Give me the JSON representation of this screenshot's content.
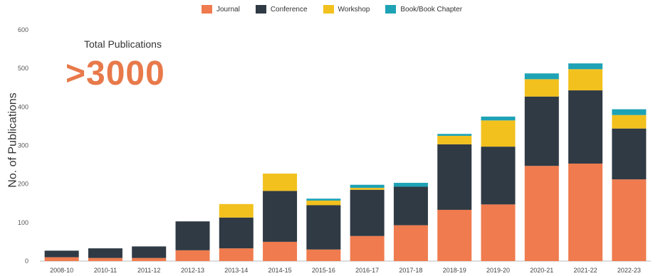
{
  "colors": {
    "journal": "#ef7b4e",
    "conference": "#2f3a44",
    "workshop": "#f2c11e",
    "book": "#1ea2b5"
  },
  "callout": {
    "label": "Total Publications",
    "value": ">3000"
  },
  "chart_data": {
    "type": "bar",
    "stacked": true,
    "categories": [
      "2008-10",
      "2010-11",
      "2011-12",
      "2012-13",
      "2013-14",
      "2014-15",
      "2015-16",
      "2016-17",
      "2017-18",
      "2018-19",
      "2019-20",
      "2020-21",
      "2021-22",
      "2022-23"
    ],
    "series": [
      {
        "name": "Journal",
        "values": [
          10,
          8,
          8,
          28,
          33,
          50,
          30,
          65,
          93,
          133,
          147,
          247,
          253,
          212
        ]
      },
      {
        "name": "Conference",
        "values": [
          17,
          25,
          30,
          75,
          80,
          132,
          115,
          120,
          100,
          170,
          150,
          180,
          190,
          132
        ]
      },
      {
        "name": "Workshop",
        "values": [
          0,
          0,
          0,
          0,
          35,
          45,
          12,
          5,
          0,
          22,
          68,
          45,
          55,
          35
        ]
      },
      {
        "name": "Book/Book Chapter",
        "values": [
          0,
          0,
          0,
          0,
          0,
          0,
          5,
          8,
          10,
          5,
          10,
          15,
          15,
          15
        ]
      }
    ],
    "ylabel": "No. of Publications",
    "xlabel": "",
    "ylim": [
      0,
      600
    ],
    "yticks": [
      0,
      100,
      200,
      300,
      400,
      500,
      600
    ],
    "legend_position": "top",
    "grid": false
  }
}
